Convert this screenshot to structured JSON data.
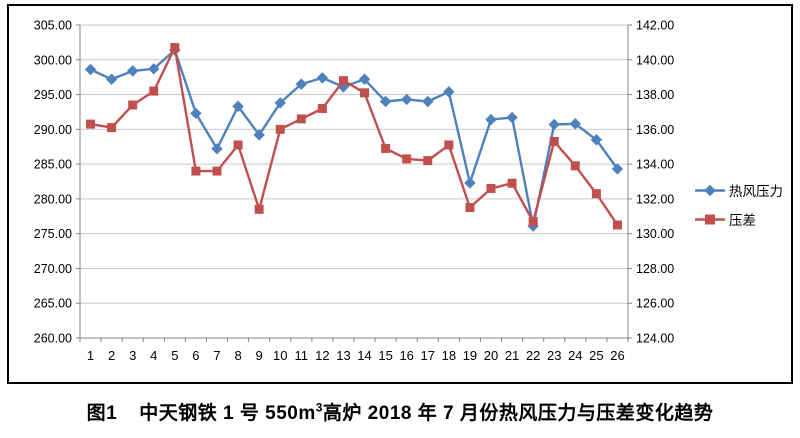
{
  "figure": {
    "caption_label": "图1",
    "caption_pre_sup": "中天钢铁 1 号 550m",
    "caption_sup": "3",
    "caption_post_sup": "高炉 2018 年 7 月份热风压力与压差变化趋势"
  },
  "chart_data": {
    "type": "line",
    "x_labels": [
      "1",
      "2",
      "3",
      "4",
      "5",
      "6",
      "7",
      "8",
      "9",
      "10",
      "11",
      "12",
      "13",
      "14",
      "15",
      "16",
      "17",
      "18",
      "19",
      "20",
      "21",
      "22",
      "23",
      "24",
      "25",
      "26"
    ],
    "series": [
      {
        "name": "热风压力",
        "axis": "left",
        "color": "#4F81BD",
        "marker": "diamond",
        "values": [
          298.6,
          297.2,
          298.4,
          298.7,
          301.4,
          292.3,
          287.2,
          293.3,
          289.2,
          293.8,
          296.5,
          297.4,
          296.1,
          297.2,
          294.0,
          294.3,
          294.0,
          295.4,
          282.3,
          291.4,
          291.7,
          276.1,
          290.7,
          290.8,
          288.5,
          284.3
        ]
      },
      {
        "name": "压差",
        "axis": "right",
        "color": "#C0504D",
        "marker": "square",
        "values": [
          136.3,
          136.1,
          137.4,
          138.2,
          140.7,
          133.6,
          133.6,
          135.1,
          131.4,
          136.0,
          136.6,
          137.2,
          138.8,
          138.1,
          134.9,
          134.3,
          134.2,
          135.1,
          131.5,
          132.6,
          132.9,
          130.7,
          135.3,
          133.9,
          132.3,
          130.5
        ]
      }
    ],
    "left_axis": {
      "min": 260,
      "max": 305,
      "step": 5,
      "labels": [
        "305.00",
        "300.00",
        "295.00",
        "290.00",
        "285.00",
        "280.00",
        "275.00",
        "270.00",
        "265.00",
        "260.00"
      ]
    },
    "right_axis": {
      "min": 124,
      "max": 142,
      "step": 2,
      "labels": [
        "142.00",
        "140.00",
        "138.00",
        "136.00",
        "134.00",
        "132.00",
        "130.00",
        "128.00",
        "126.00",
        "124.00"
      ]
    },
    "grid": true,
    "legend_position": "right",
    "gridline_color": "#c9c9c9",
    "axis_color": "#868686",
    "text_color": "#000000"
  }
}
